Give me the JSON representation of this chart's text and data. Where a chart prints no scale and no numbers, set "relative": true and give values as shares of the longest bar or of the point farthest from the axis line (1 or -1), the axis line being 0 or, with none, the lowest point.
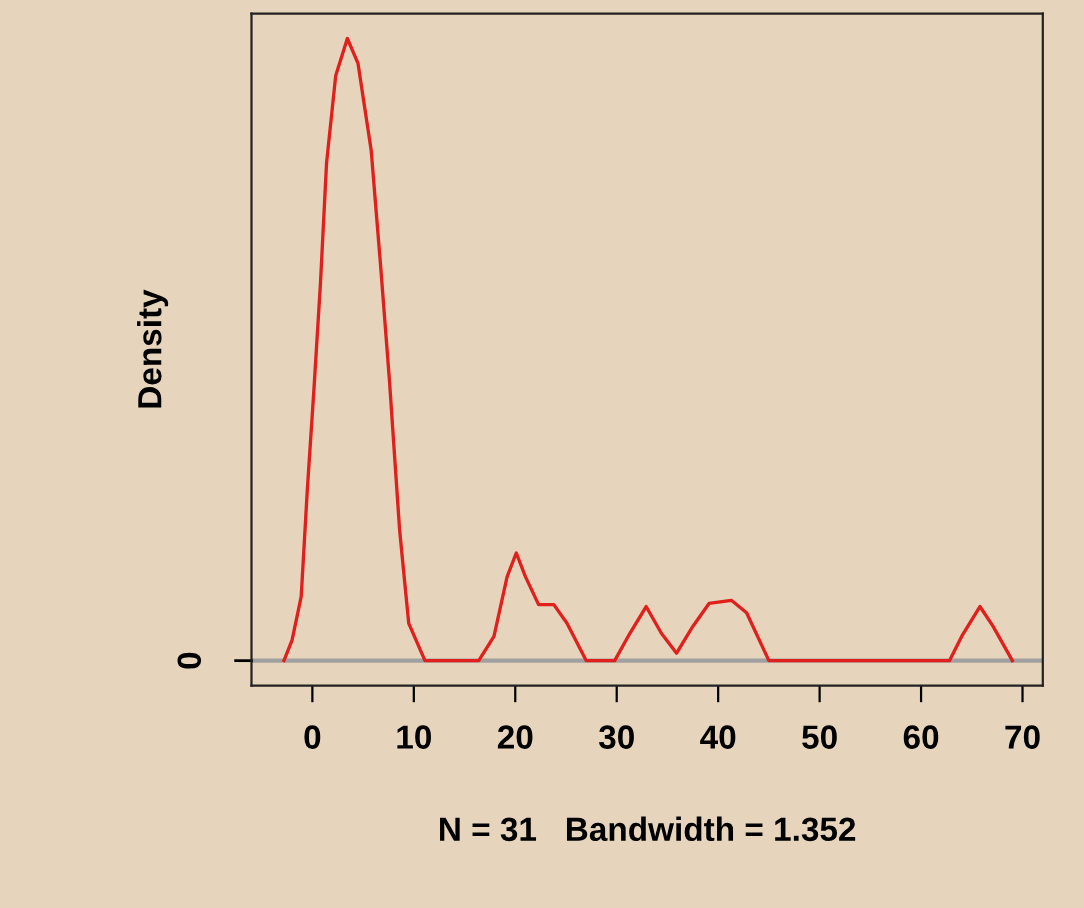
{
  "chart_data": {
    "type": "line",
    "relative": true,
    "xlabel": "N = 31   Bandwidth = 1.352",
    "ylabel": "Density",
    "x": [
      -2.8,
      -2.0,
      -1.1,
      -0.5,
      0.15,
      0.8,
      1.4,
      2.3,
      3.45,
      4.5,
      5.8,
      6.7,
      7.6,
      8.6,
      9.5,
      11.1,
      16.4,
      17.9,
      19.2,
      20.1,
      21.0,
      22.3,
      23.8,
      25.1,
      27.0,
      29.8,
      31.3,
      32.9,
      34.4,
      35.9,
      37.5,
      39.1,
      41.3,
      42.8,
      45.0,
      62.8,
      64.0,
      65.8,
      67.1,
      69.0
    ],
    "series": [
      {
        "color": "#e0201c",
        "values": [
          0,
          0.033,
          0.103,
          0.274,
          0.435,
          0.607,
          0.8,
          0.94,
          1,
          0.96,
          0.82,
          0.64,
          0.45,
          0.21,
          0.06,
          0,
          0,
          0.039,
          0.135,
          0.173,
          0.135,
          0.09,
          0.09,
          0.06,
          0,
          0,
          0.044,
          0.087,
          0.044,
          0.012,
          0.055,
          0.092,
          0.097,
          0.077,
          0,
          0,
          0.039,
          0.087,
          0.055,
          0
        ]
      }
    ],
    "xlim": [
      -6,
      72
    ],
    "xticks": [
      0,
      10,
      20,
      30,
      40,
      50,
      60,
      70
    ],
    "ref_lines": [
      {
        "axis": "y",
        "value": 0,
        "label": "0",
        "color": "#a0a0a0"
      }
    ],
    "tick_labels": "x",
    "grid": false,
    "legend": false,
    "marker": "none",
    "line_style": "solid"
  }
}
